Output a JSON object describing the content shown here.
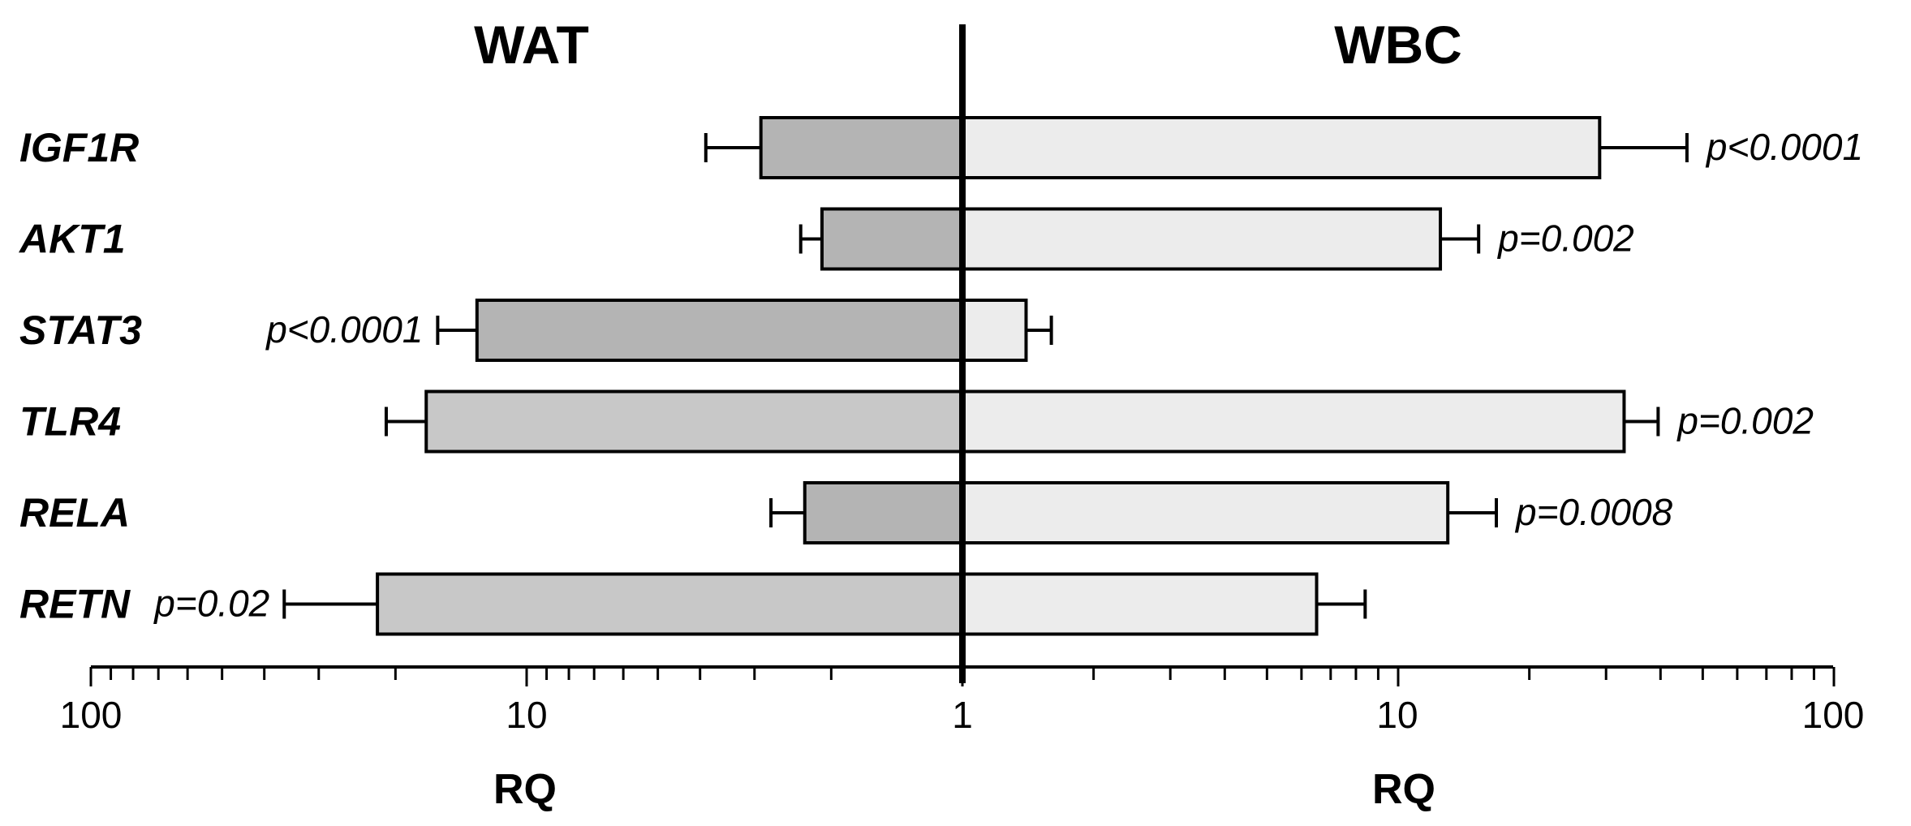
{
  "chart_data": {
    "type": "bar",
    "orientation": "horizontal",
    "scale": "log10",
    "panels": [
      {
        "title": "WAT",
        "side": "left",
        "xlabel": "RQ",
        "xlim": [
          100,
          1
        ],
        "ticks": [
          "100",
          "10",
          "1"
        ]
      },
      {
        "title": "WBC",
        "side": "right",
        "xlabel": "RQ",
        "xlim": [
          1,
          100
        ],
        "ticks": [
          "1",
          "10",
          "100"
        ]
      }
    ],
    "categories": [
      "IGF1R",
      "AKT1",
      "STAT3",
      "TLR4",
      "RELA",
      "RETN"
    ],
    "series": [
      {
        "panel": "WAT",
        "values": [
          2.9,
          2.1,
          13.0,
          17.0,
          2.3,
          22.0
        ],
        "error": [
          0.98,
          0.25,
          3.0,
          4.0,
          0.45,
          14.0
        ],
        "colors": [
          "#b4b4b4",
          "#b4b4b4",
          "#b4b4b4",
          "#c8c8c8",
          "#b4b4b4",
          "#c8c8c8"
        ],
        "pvalues": [
          "",
          "",
          "p<0.0001",
          "",
          "",
          "p=0.02"
        ]
      },
      {
        "panel": "WBC",
        "values": [
          29.0,
          12.5,
          1.4,
          33.0,
          13.0,
          6.5
        ],
        "error": [
          17.0,
          2.8,
          0.2,
          6.5,
          3.8,
          1.9
        ],
        "colors": [
          "#ececec",
          "#ececec",
          "#ececec",
          "#ececec",
          "#ececec",
          "#ececec"
        ],
        "pvalues": [
          "p<0.0001",
          "p=0.002",
          "",
          "p=0.002",
          "p=0.0008",
          ""
        ]
      }
    ]
  }
}
